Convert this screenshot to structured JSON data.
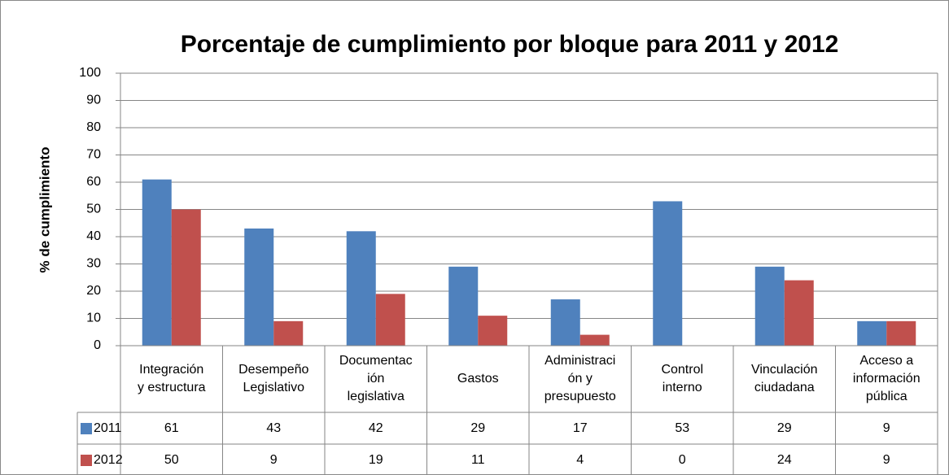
{
  "chart_data": {
    "type": "bar",
    "title": "Porcentaje de cumplimiento por bloque para 2011 y 2012",
    "y_label": "% de cumplimiento",
    "categories": [
      "Integración\ny estructura",
      "Desempeño\nLegislativo",
      "Documentac\nión\nlegislativa",
      "Gastos",
      "Administraci\nón y\npresupuesto",
      "Control\ninterno",
      "Vinculación\nciudadana",
      "Acceso a\ninformación\npública"
    ],
    "series": [
      {
        "name": "2011",
        "color": "#4f81bd",
        "values": [
          61,
          43,
          42,
          29,
          17,
          53,
          29,
          9
        ]
      },
      {
        "name": "2012",
        "color": "#c0504d",
        "values": [
          50,
          9,
          19,
          11,
          4,
          0,
          24,
          9
        ]
      }
    ],
    "ylim": [
      0,
      100
    ],
    "yticks": [
      0,
      10,
      20,
      30,
      40,
      50,
      60,
      70,
      80,
      90,
      100
    ],
    "grid": true
  }
}
